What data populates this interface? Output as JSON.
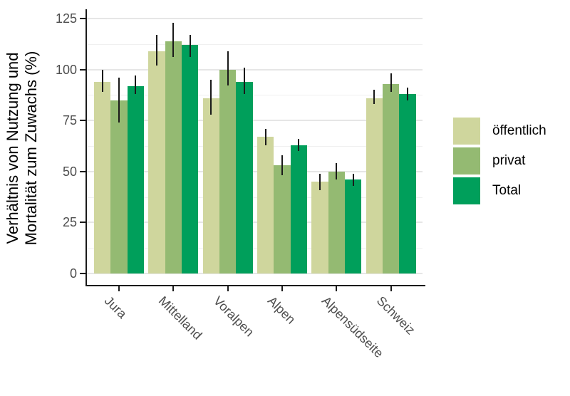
{
  "chart_data": {
    "type": "bar",
    "bar_mode": "grouped",
    "title": "",
    "xlabel": "",
    "ylabel_lines": [
      "Verhältnis von Nutzung und",
      "Mortalität zum Zuwachs (%)"
    ],
    "categories": [
      "Jura",
      "Mittelland",
      "Voralpen",
      "Alpen",
      "Alpensüdseite",
      "Schweiz"
    ],
    "series": [
      {
        "name": "öffentlich",
        "color": "#cfd69d",
        "values": [
          94,
          109,
          86,
          67,
          45,
          86
        ],
        "error_low": [
          89,
          102,
          78,
          63,
          41,
          83
        ],
        "error_high": [
          100,
          117,
          95,
          71,
          49,
          90
        ]
      },
      {
        "name": "privat",
        "color": "#94ba72",
        "values": [
          85,
          114,
          100,
          53,
          50,
          93
        ],
        "error_low": [
          74,
          106,
          92,
          48,
          46,
          89
        ],
        "error_high": [
          96,
          123,
          109,
          58,
          54,
          98
        ]
      },
      {
        "name": "Total",
        "color": "#009f5b",
        "values": [
          92,
          112,
          94,
          63,
          46,
          88
        ],
        "error_low": [
          88,
          106,
          88,
          60,
          43,
          85
        ],
        "error_high": [
          97,
          117,
          101,
          66,
          49,
          91
        ]
      }
    ],
    "y_ticks": [
      0,
      25,
      50,
      75,
      100,
      125
    ],
    "y_minor_ticks": [
      12.5,
      37.5,
      62.5,
      87.5,
      112.5
    ],
    "ylim": [
      0,
      131
    ],
    "grid": "horizontal-only",
    "legend_position": "right",
    "error_bars": "linerange",
    "colors": {
      "axis": "#1a1a1a",
      "tick_label": "#4d4d4d",
      "grid_major": "#e6e6e6",
      "grid_minor": "#f0f0f0",
      "background": "#ffffff"
    }
  }
}
